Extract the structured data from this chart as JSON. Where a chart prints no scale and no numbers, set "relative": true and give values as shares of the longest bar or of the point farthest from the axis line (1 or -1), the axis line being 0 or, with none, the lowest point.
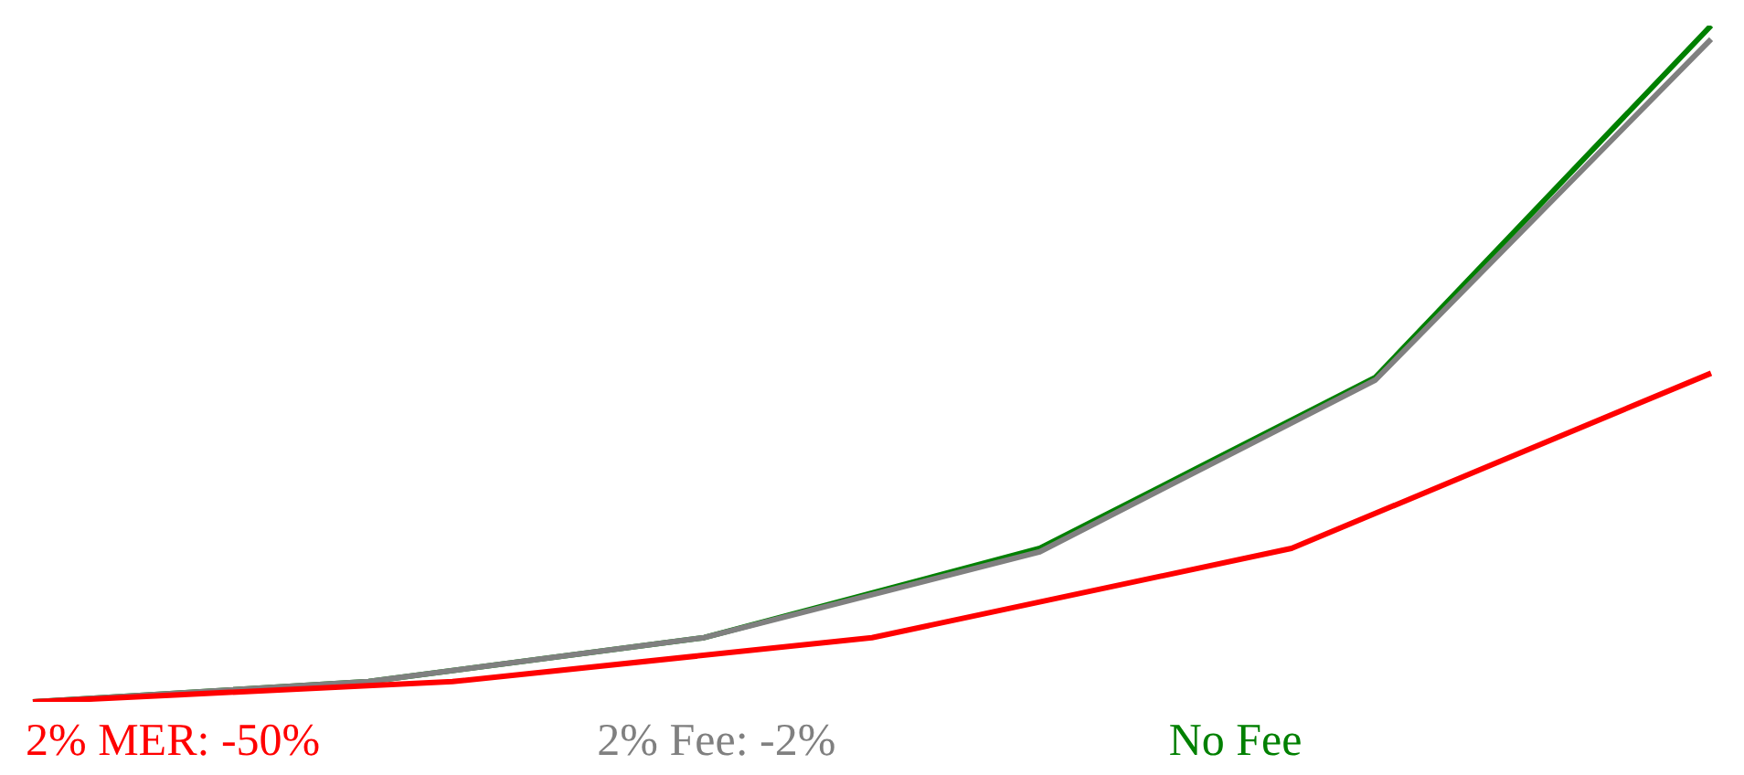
{
  "chart_data": {
    "type": "line",
    "relative": true,
    "marker": "none",
    "line_style": "solid",
    "categories": [
      null,
      null,
      null,
      null,
      null,
      null,
      null,
      null,
      null,
      null,
      null,
      null,
      null,
      null,
      null,
      null,
      null,
      null,
      null,
      null,
      null
    ],
    "series": [
      {
        "name": "2% MER: -50%",
        "color": "#ff0000",
        "values": [
          0,
          null,
          null,
          null,
          null,
          0.03,
          null,
          null,
          null,
          null,
          0.095,
          null,
          null,
          null,
          null,
          0.227,
          null,
          null,
          null,
          null,
          0.486
        ]
      },
      {
        "name": "2% Fee: -2%",
        "color": "#808080",
        "values": [
          0,
          null,
          null,
          null,
          0.03,
          null,
          null,
          null,
          0.095,
          null,
          null,
          null,
          0.222,
          null,
          null,
          null,
          0.476,
          null,
          null,
          null,
          0.98
        ]
      },
      {
        "name": "No Fee",
        "color": "#008000",
        "values": [
          0,
          null,
          null,
          null,
          0.03,
          null,
          null,
          null,
          0.095,
          null,
          null,
          null,
          0.227,
          null,
          null,
          null,
          0.48,
          null,
          null,
          null,
          1
        ]
      }
    ]
  }
}
